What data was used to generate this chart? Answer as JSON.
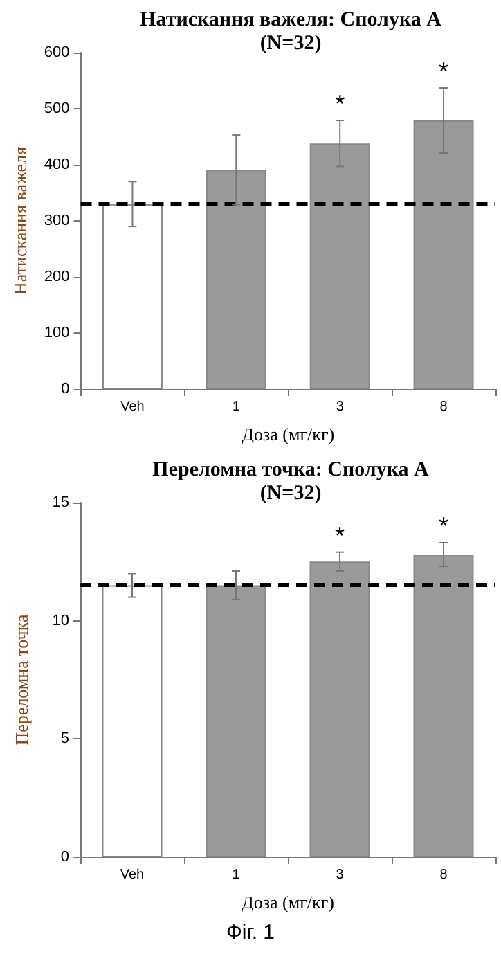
{
  "chart_data": [
    {
      "type": "bar",
      "title": "Натискання важеля: Сполука А",
      "subtitle": "(N=32)",
      "xlabel": "Доза (мг/кг)",
      "ylabel": "Натискання важеля",
      "categories": [
        "Veh",
        "1",
        "3",
        "8"
      ],
      "values": [
        330,
        391,
        438,
        479
      ],
      "colors": [
        "#ffffff",
        "#9a9a9a",
        "#9a9a9a",
        "#9a9a9a"
      ],
      "errors": [
        40,
        62,
        41,
        58
      ],
      "ylim": [
        0,
        600
      ],
      "yticks": [
        0,
        100,
        200,
        300,
        400,
        500,
        600
      ],
      "grid": false,
      "ref_lines": [
        {
          "axis": "y",
          "value": 330,
          "line_style": "dashed",
          "color": "#000000"
        }
      ],
      "annotations": [
        {
          "text": "*",
          "x": "3",
          "y": 479
        },
        {
          "text": "*",
          "x": "8",
          "y": 537
        }
      ]
    },
    {
      "type": "bar",
      "title": "Переломна точка: Сполука А",
      "subtitle": "(N=32)",
      "xlabel": "Доза (мг/кг)",
      "ylabel": "Переломна точка",
      "categories": [
        "Veh",
        "1",
        "3",
        "8"
      ],
      "values": [
        11.5,
        11.5,
        12.5,
        12.8
      ],
      "colors": [
        "#ffffff",
        "#9a9a9a",
        "#9a9a9a",
        "#9a9a9a"
      ],
      "errors": [
        0.5,
        0.6,
        0.4,
        0.5
      ],
      "ylim": [
        0,
        15
      ],
      "yticks": [
        0,
        5,
        10,
        15
      ],
      "grid": false,
      "ref_lines": [
        {
          "axis": "y",
          "value": 11.5,
          "line_style": "dashed",
          "color": "#000000"
        }
      ],
      "annotations": [
        {
          "text": "*",
          "x": "3",
          "y": 12.9
        },
        {
          "text": "*",
          "x": "8",
          "y": 13.3
        },
        "Фіг. 1"
      ]
    }
  ]
}
